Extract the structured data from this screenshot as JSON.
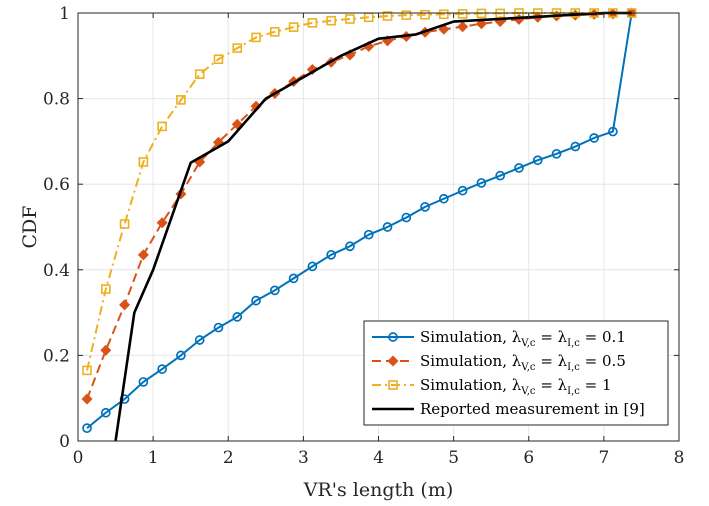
{
  "chart_data": {
    "type": "line",
    "xlabel": "VR's length (m)",
    "ylabel": "CDF",
    "xlim": [
      0,
      8
    ],
    "ylim": [
      0,
      1
    ],
    "xticks": [
      "0",
      "1",
      "2",
      "3",
      "4",
      "5",
      "6",
      "7",
      "8"
    ],
    "yticks": [
      "0",
      "0.2",
      "0.4",
      "0.6",
      "0.8",
      "1"
    ],
    "grid": true,
    "legend_position": "bottom-right",
    "series": [
      {
        "name": "Simulation, λV,c = λI,c = 0.1",
        "legend": {
          "prefix": "Simulation, ",
          "l1": "λ",
          "s1": "V,c",
          "mid": " = ",
          "l2": "λ",
          "s2": "I,c",
          "suffix": " = 0.1"
        },
        "color": "#0072BD",
        "line_style": "solid",
        "marker": "circle",
        "x": [
          0.12,
          0.37,
          0.62,
          0.87,
          1.12,
          1.37,
          1.62,
          1.87,
          2.12,
          2.37,
          2.62,
          2.87,
          3.12,
          3.37,
          3.62,
          3.87,
          4.12,
          4.37,
          4.62,
          4.87,
          5.12,
          5.37,
          5.62,
          5.87,
          6.12,
          6.37,
          6.62,
          6.87,
          7.12,
          7.37
        ],
        "y": [
          0.03,
          0.066,
          0.098,
          0.138,
          0.168,
          0.2,
          0.236,
          0.265,
          0.29,
          0.328,
          0.352,
          0.38,
          0.408,
          0.435,
          0.455,
          0.482,
          0.5,
          0.522,
          0.547,
          0.566,
          0.585,
          0.603,
          0.62,
          0.638,
          0.656,
          0.671,
          0.688,
          0.708,
          0.723,
          1.0
        ]
      },
      {
        "name": "Simulation, λV,c = λI,c = 0.5",
        "legend": {
          "prefix": "Simulation, ",
          "l1": "λ",
          "s1": "V,c",
          "mid": " = ",
          "l2": "λ",
          "s2": "I,c",
          "suffix": " = 0.5"
        },
        "color": "#D95319",
        "line_style": "dashed",
        "marker": "diamond",
        "x": [
          0.12,
          0.37,
          0.62,
          0.87,
          1.12,
          1.37,
          1.62,
          1.87,
          2.12,
          2.37,
          2.62,
          2.87,
          3.12,
          3.37,
          3.62,
          3.87,
          4.12,
          4.37,
          4.62,
          4.87,
          5.12,
          5.37,
          5.62,
          5.87,
          6.12,
          6.37,
          6.62,
          6.87,
          7.12,
          7.37
        ],
        "y": [
          0.098,
          0.212,
          0.318,
          0.435,
          0.51,
          0.577,
          0.652,
          0.698,
          0.74,
          0.782,
          0.812,
          0.84,
          0.868,
          0.885,
          0.902,
          0.922,
          0.935,
          0.945,
          0.955,
          0.962,
          0.968,
          0.975,
          0.98,
          0.985,
          0.99,
          0.993,
          0.995,
          0.997,
          0.998,
          1.0
        ]
      },
      {
        "name": "Simulation, λV,c = λI,c = 1",
        "legend": {
          "prefix": "Simulation, ",
          "l1": "λ",
          "s1": "V,c",
          "mid": " = ",
          "l2": "λ",
          "s2": "I,c",
          "suffix": " = 1"
        },
        "color": "#EDB120",
        "line_style": "dashdot",
        "marker": "square",
        "x": [
          0.12,
          0.37,
          0.62,
          0.87,
          1.12,
          1.37,
          1.62,
          1.87,
          2.12,
          2.37,
          2.62,
          2.87,
          3.12,
          3.37,
          3.62,
          3.87,
          4.12,
          4.37,
          4.62,
          4.87,
          5.12,
          5.37,
          5.62,
          5.87,
          6.12,
          6.37,
          6.62,
          6.87,
          7.12,
          7.37
        ],
        "y": [
          0.165,
          0.355,
          0.507,
          0.652,
          0.735,
          0.797,
          0.857,
          0.892,
          0.918,
          0.943,
          0.956,
          0.967,
          0.977,
          0.982,
          0.986,
          0.99,
          0.993,
          0.995,
          0.996,
          0.997,
          0.998,
          0.999,
          0.999,
          1.0,
          1.0,
          1.0,
          1.0,
          1.0,
          1.0,
          1.0
        ]
      },
      {
        "name": "Reported measurement in [9]",
        "legend": {
          "prefix": "Reported measurement in [9]",
          "l1": "",
          "s1": "",
          "mid": "",
          "l2": "",
          "s2": "",
          "suffix": ""
        },
        "color": "#000000",
        "line_style": "solid",
        "marker": "none",
        "x": [
          0.5,
          0.75,
          1.0,
          1.5,
          2.0,
          2.5,
          3.0,
          3.5,
          4.0,
          4.5,
          5.0,
          6.0,
          7.0,
          7.37
        ],
        "y": [
          0.0,
          0.3,
          0.4,
          0.65,
          0.7,
          0.8,
          0.85,
          0.9,
          0.94,
          0.95,
          0.98,
          0.99,
          1.0,
          1.0
        ]
      }
    ]
  }
}
